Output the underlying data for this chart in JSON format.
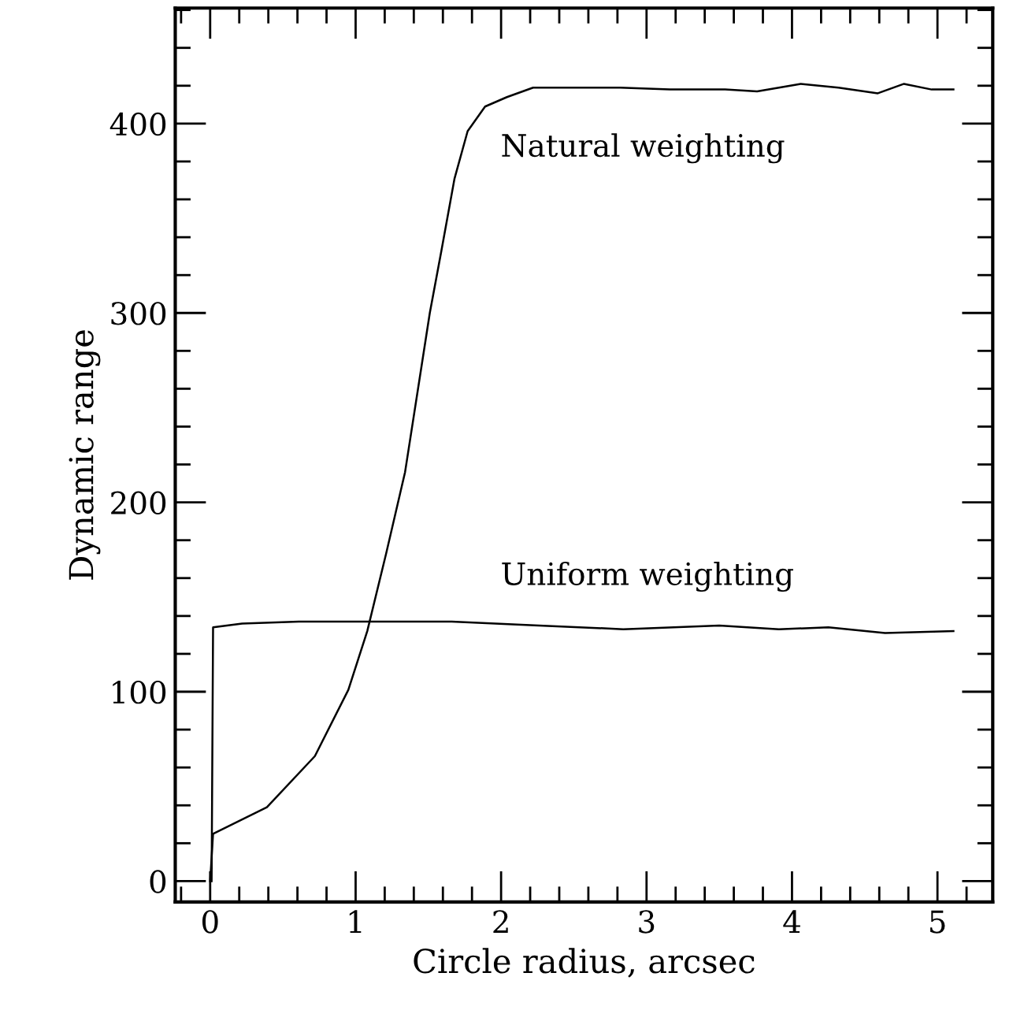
{
  "chart_data": {
    "type": "line",
    "xlabel": "Circle radius, arcsec",
    "ylabel": "Dynamic range",
    "xlim": [
      -0.24,
      5.38
    ],
    "ylim": [
      -11,
      461
    ],
    "xticks": [
      0,
      1,
      2,
      3,
      4,
      5
    ],
    "yticks": [
      0,
      100,
      200,
      300,
      400
    ],
    "grid": false,
    "legend": false,
    "marker": "none",
    "line_style": "solid",
    "series": [
      {
        "name": "Natural weighting",
        "color": "#000000",
        "x": [
          0.0,
          0.02,
          0.39,
          0.72,
          0.95,
          1.08,
          1.21,
          1.34,
          1.51,
          1.59,
          1.68,
          1.77,
          1.89,
          2.04,
          2.22,
          2.37,
          2.82,
          3.16,
          3.54,
          3.76,
          4.06,
          4.32,
          4.59,
          4.77,
          4.96,
          5.11
        ],
        "values": [
          0,
          25,
          39,
          66,
          101,
          132,
          173,
          216,
          300,
          333,
          371,
          396,
          409,
          414,
          419,
          419,
          419,
          418,
          418,
          417,
          421,
          419,
          416,
          421,
          418,
          418
        ]
      },
      {
        "name": "Uniform weighting",
        "color": "#000000",
        "x": [
          0.01,
          0.02,
          0.22,
          0.61,
          1.06,
          1.66,
          2.26,
          2.84,
          3.5,
          3.91,
          4.25,
          4.64,
          5.11
        ],
        "values": [
          0,
          134,
          136,
          137,
          137,
          137,
          135,
          133,
          135,
          133,
          134,
          131,
          132
        ]
      }
    ]
  }
}
